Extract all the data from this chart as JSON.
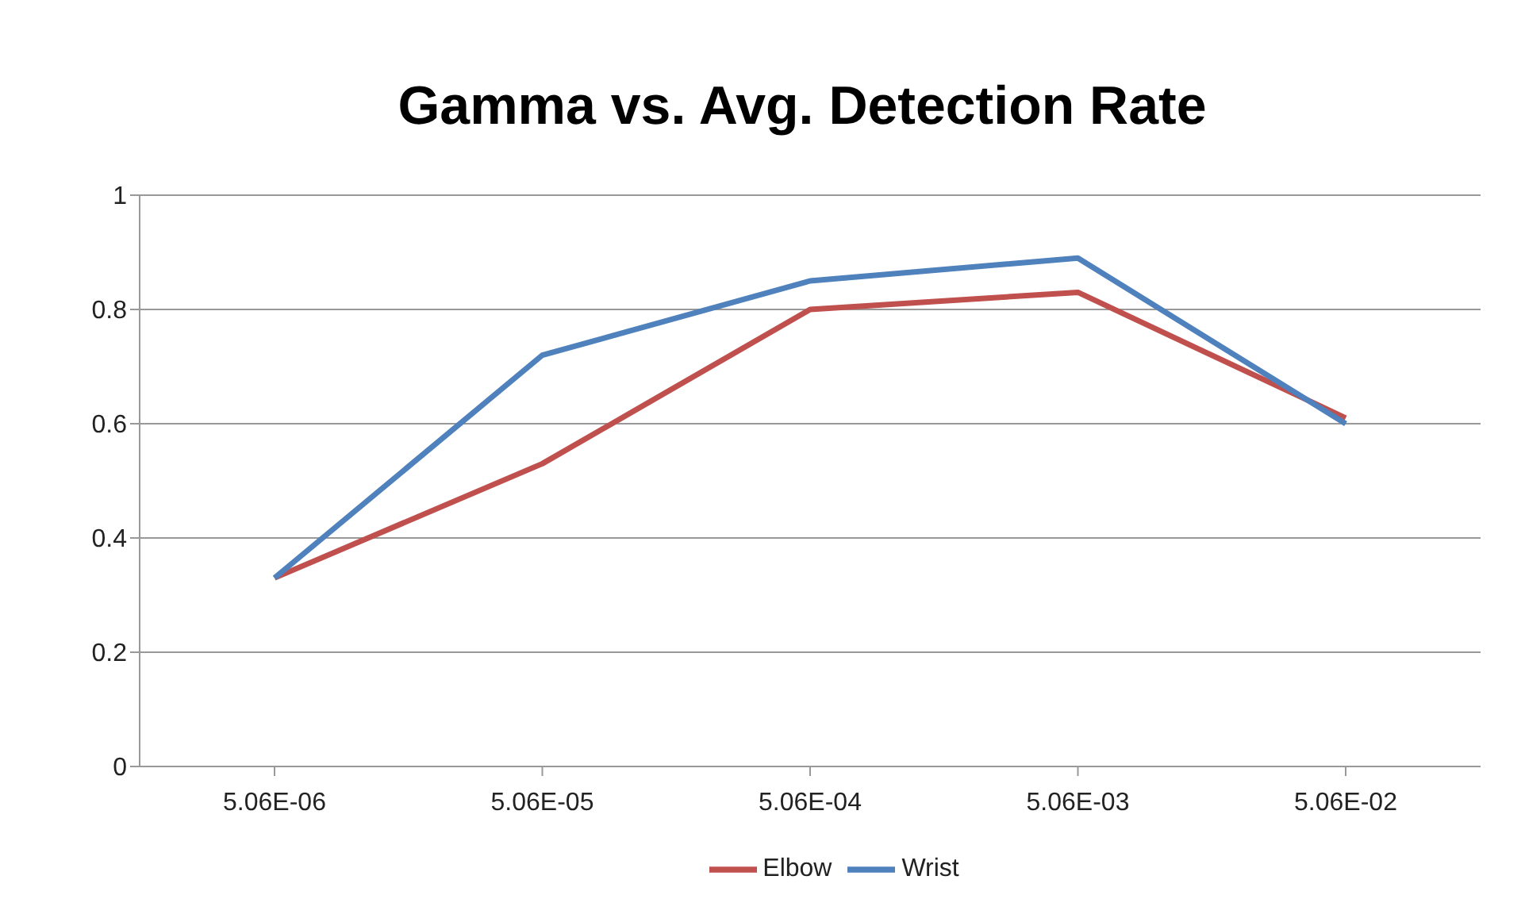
{
  "chart_data": {
    "type": "line",
    "title": "Gamma vs. Avg. Detection Rate",
    "categories": [
      "5.06E-06",
      "5.06E-05",
      "5.06E-04",
      "5.06E-03",
      "5.06E-02"
    ],
    "series": [
      {
        "name": "Elbow",
        "color": "#c0504d",
        "values": [
          0.33,
          0.53,
          0.8,
          0.83,
          0.61
        ]
      },
      {
        "name": "Wrist",
        "color": "#4f81bd",
        "values": [
          0.33,
          0.72,
          0.85,
          0.89,
          0.6
        ]
      }
    ],
    "ylim": [
      0,
      1
    ],
    "yticks": [
      0,
      0.2,
      0.4,
      0.6,
      0.8,
      1
    ],
    "grid": "y",
    "legend": "bottom",
    "marker": "none",
    "line_style": "solid"
  }
}
